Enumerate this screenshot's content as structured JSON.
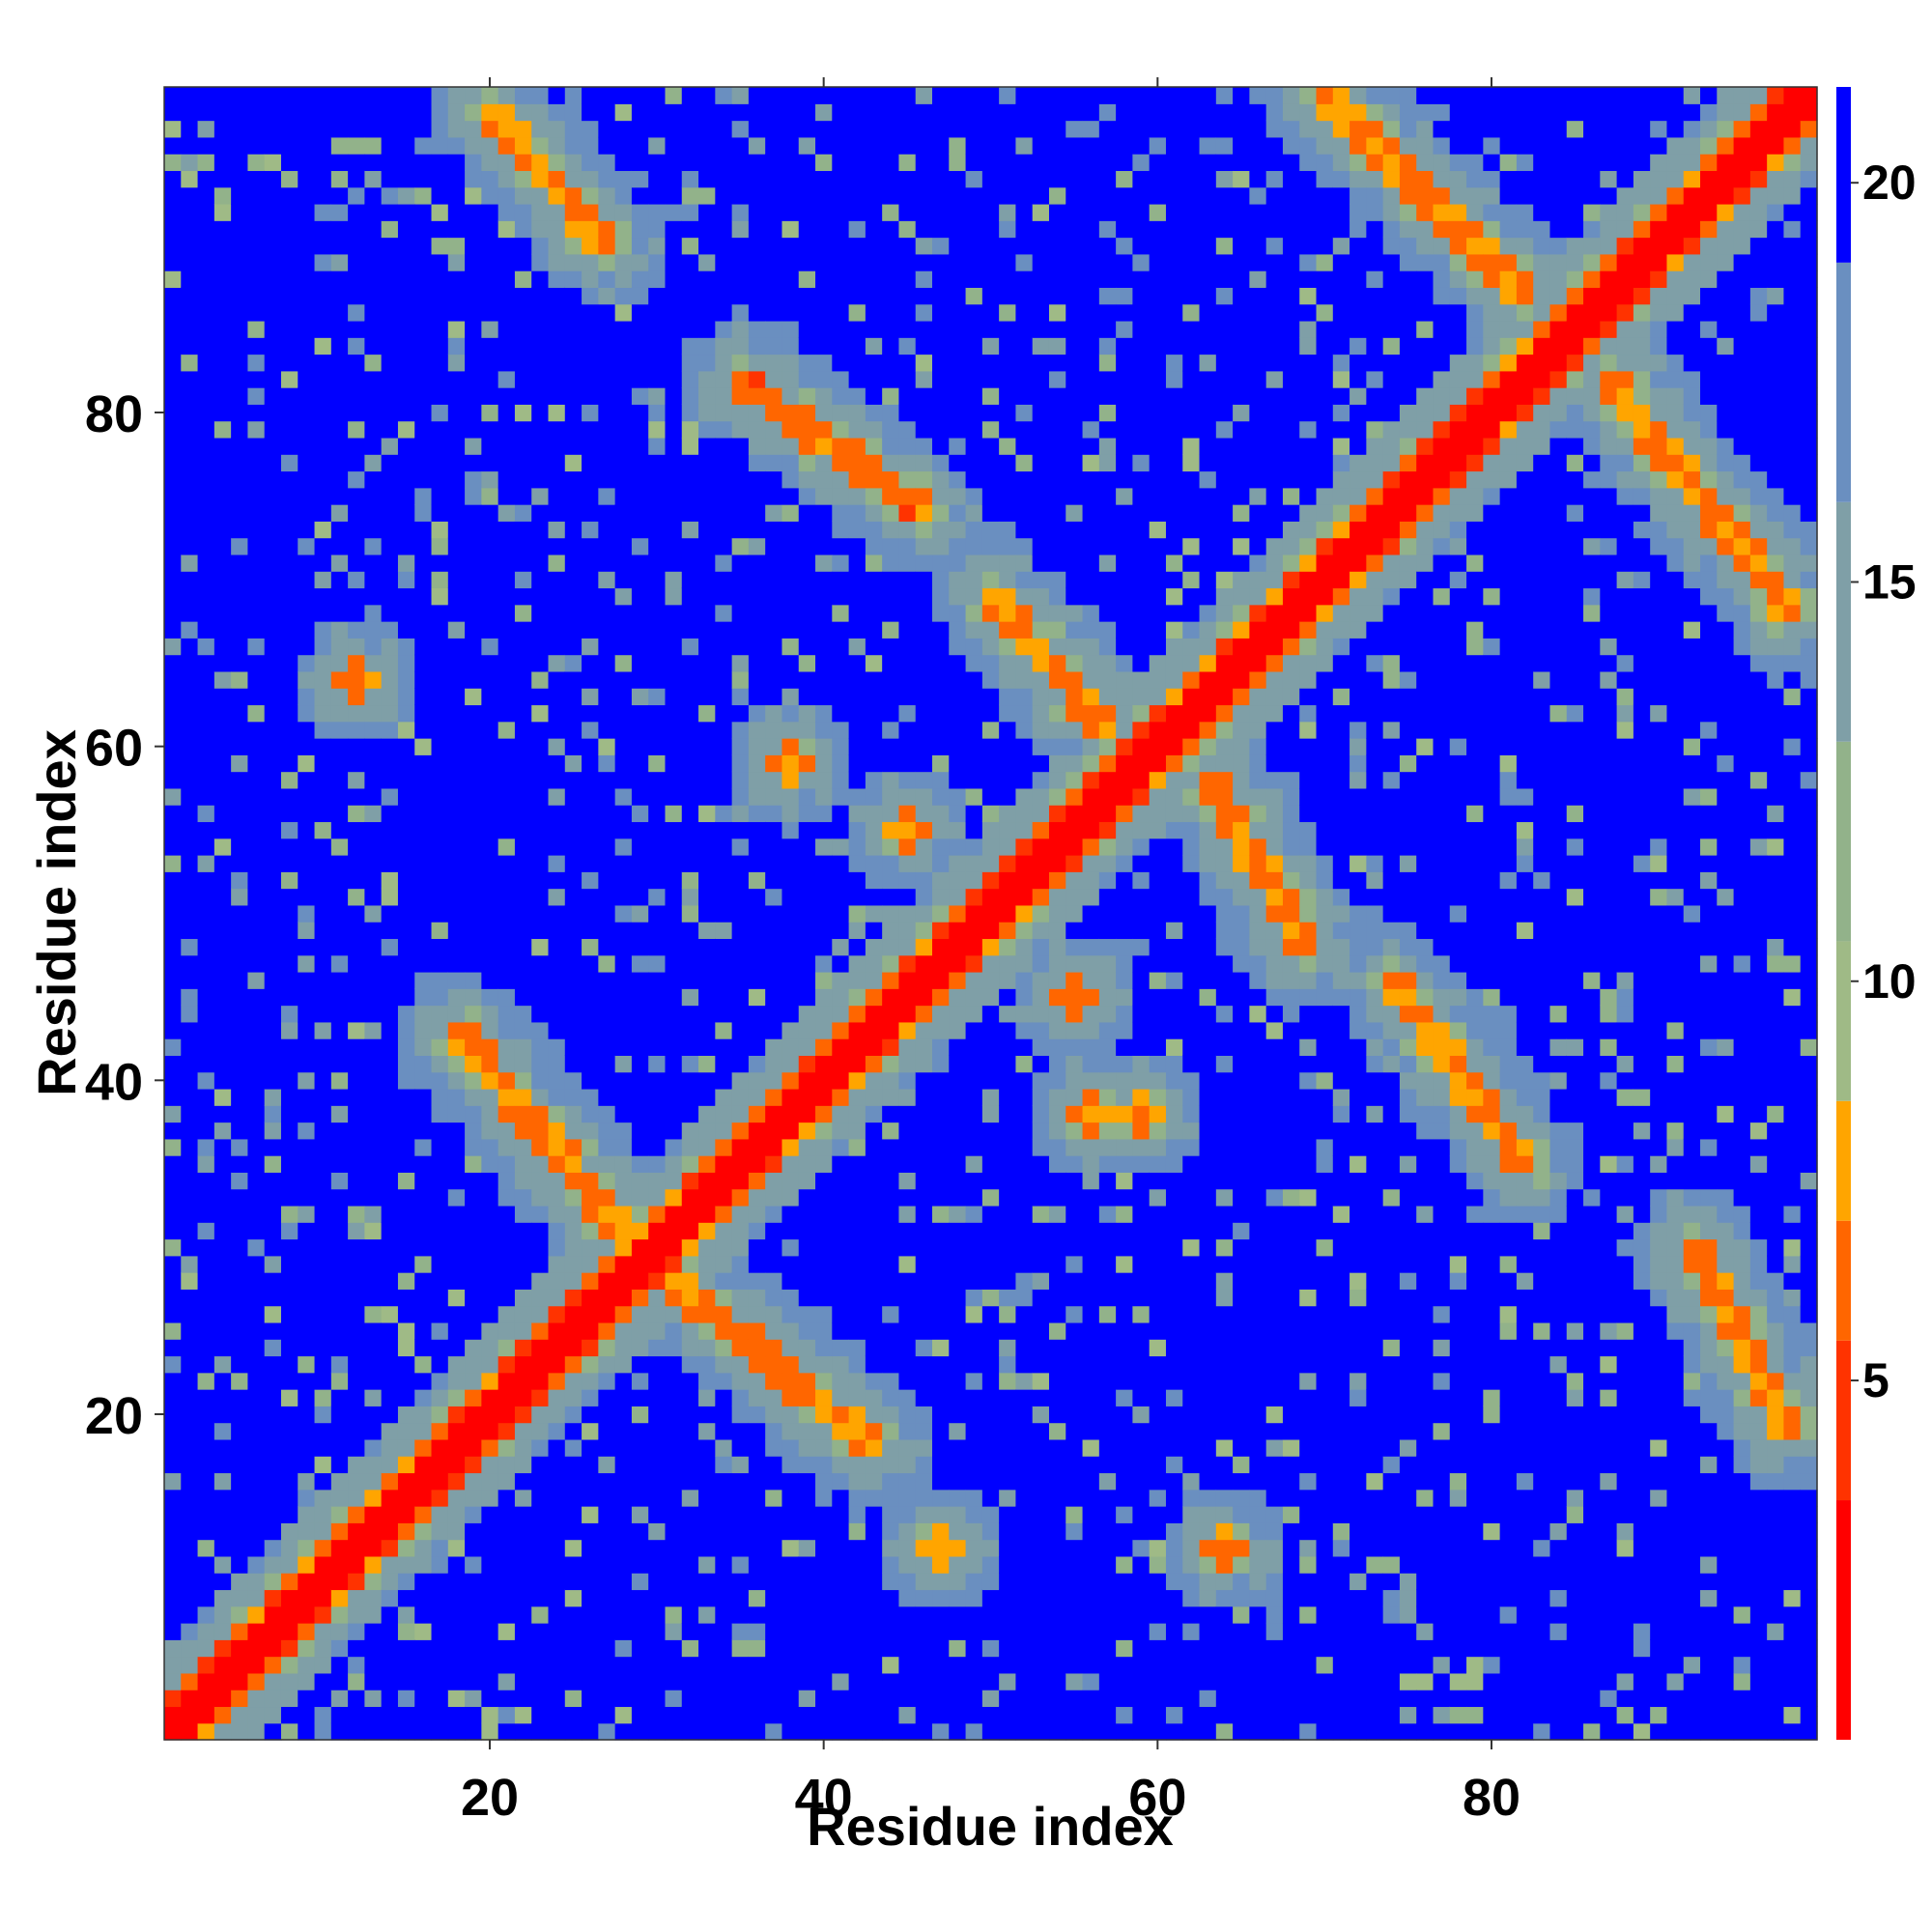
{
  "chart_data": {
    "type": "heatmap",
    "title": "",
    "xlabel": "Residue index",
    "ylabel": "Residue index",
    "n_residues": 99,
    "xlim": [
      1,
      99
    ],
    "ylim": [
      1,
      99
    ],
    "x_ticks": [
      20,
      40,
      60,
      80
    ],
    "y_ticks": [
      20,
      40,
      60,
      80
    ],
    "x_tick_labels": [
      "20",
      "40",
      "60",
      "80"
    ],
    "y_tick_labels": [
      "20",
      "40",
      "60",
      "80"
    ],
    "colorbar": {
      "ticks": [
        5,
        10,
        15,
        20
      ],
      "tick_labels": [
        "5",
        "10",
        "15",
        "20"
      ],
      "range": [
        0.5,
        21.2
      ],
      "colors": [
        {
          "max": 3.5,
          "color": "#ff0000"
        },
        {
          "max": 5.5,
          "color": "#ff3300"
        },
        {
          "max": 7.0,
          "color": "#ff6600"
        },
        {
          "max": 8.5,
          "color": "#ffa500"
        },
        {
          "max": 10.5,
          "color": "#9fba86"
        },
        {
          "max": 13.0,
          "color": "#92b28a"
        },
        {
          "max": 16.0,
          "color": "#7f9fa7"
        },
        {
          "max": 19.0,
          "color": "#6a8fc0"
        },
        {
          "max": 99,
          "color": "#0000ff"
        }
      ]
    },
    "value_description": "symmetric residue-residue distance map: diagonal distance < 4, near-diagonal band and off-diagonal contact stripes 5-8, shells 9-19, background > 20",
    "contact_stripes": [
      {
        "i": [
          20,
          27
        ],
        "j": [
          98,
          90
        ],
        "value": 6.5
      },
      {
        "i": [
          35,
          46
        ],
        "j": [
          82,
          74
        ],
        "value": 6.0
      },
      {
        "i": [
          50,
          57
        ],
        "j": [
          69,
          61
        ],
        "value": 6.5
      },
      {
        "i": [
          63,
          69
        ],
        "j": [
          58,
          48
        ],
        "value": 6.5
      },
      {
        "i": [
          74,
          82
        ],
        "j": [
          46,
          35
        ],
        "value": 6.5
      },
      {
        "i": [
          70,
          82
        ],
        "j": [
          99,
          87
        ],
        "value": 6.5
      },
      {
        "i": [
          87,
          98
        ],
        "j": [
          82,
          68
        ],
        "value": 6.5
      },
      {
        "i": [
          18,
          28
        ],
        "j": [
          43,
          31
        ],
        "value": 6.5
      },
      {
        "i": [
          31,
          43
        ],
        "j": [
          28,
          18
        ],
        "value": 6.5
      },
      {
        "i": [
          92,
          98
        ],
        "j": [
          30,
          19
        ],
        "value": 6.5
      }
    ],
    "contact_patches": [
      {
        "i": 12,
        "j": 64,
        "value": 6.5
      },
      {
        "i": 64,
        "j": 12,
        "value": 6.5
      },
      {
        "i": 45,
        "j": 55,
        "value": 6.5
      },
      {
        "i": 55,
        "j": 45,
        "value": 6.5
      },
      {
        "i": 38,
        "j": 59,
        "value": 6.5
      },
      {
        "i": 59,
        "j": 38,
        "value": 6.5
      },
      {
        "i": 56,
        "j": 38,
        "value": 7.0
      },
      {
        "i": 47,
        "j": 12,
        "value": 7.0
      }
    ]
  }
}
